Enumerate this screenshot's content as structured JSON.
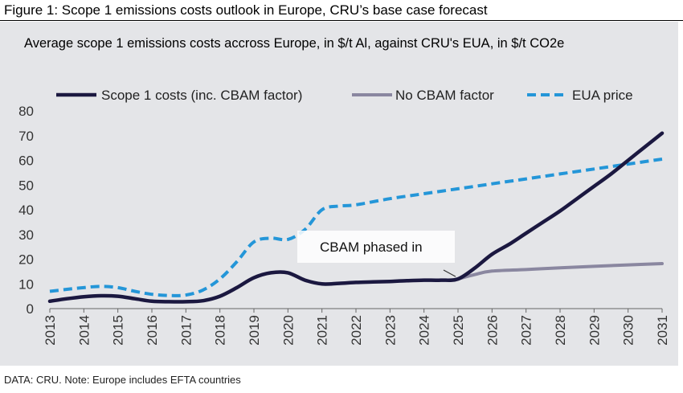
{
  "figure": {
    "title": "Figure 1: Scope 1 emissions costs outlook in Europe, CRU’s base case forecast",
    "footer": "DATA: CRU. Note: Europe includes EFTA countries"
  },
  "chart_data": {
    "type": "line",
    "title": "Average scope 1 emissions costs accross Europe, in $/t Al, against CRU's EUA, in $/t CO2e",
    "xlabel": "",
    "ylabel": "",
    "ylim": [
      0,
      80
    ],
    "yticks": [
      "0",
      "10",
      "20",
      "30",
      "40",
      "50",
      "60",
      "70",
      "80"
    ],
    "categories": [
      "2013",
      "2014",
      "2015",
      "2016",
      "2017",
      "2018",
      "2019",
      "2020",
      "2021",
      "2022",
      "2023",
      "2024",
      "2025",
      "2026",
      "2027",
      "2028",
      "2029",
      "2030",
      "2031"
    ],
    "series": [
      {
        "name": "Scope 1 costs (inc. CBAM factor)",
        "color": "#1b1840",
        "style": "solid",
        "x": [
          2013,
          2013.5,
          2014,
          2014.5,
          2015,
          2015.5,
          2016,
          2016.5,
          2017,
          2017.5,
          2018,
          2018.5,
          2019,
          2019.5,
          2020,
          2020.5,
          2021,
          2021.5,
          2022,
          2022.5,
          2023,
          2023.5,
          2024,
          2024.5,
          2025,
          2025.5,
          2026,
          2026.5,
          2027,
          2027.5,
          2028,
          2028.5,
          2029,
          2029.5,
          2030,
          2030.5,
          2031
        ],
        "values": [
          3,
          4,
          4.8,
          5.2,
          5,
          4,
          3,
          2.8,
          2.8,
          3.2,
          5,
          8.5,
          12.5,
          14.5,
          14.5,
          11.5,
          10,
          10.2,
          10.6,
          10.8,
          11,
          11.3,
          11.5,
          11.5,
          12,
          16.5,
          22,
          26,
          30.5,
          35,
          39.5,
          44.5,
          49.5,
          54.5,
          60,
          65.5,
          71
        ]
      },
      {
        "name": "No CBAM factor",
        "color": "#8a87a0",
        "style": "solid",
        "x": [
          2025,
          2025.5,
          2026,
          2027,
          2028,
          2029,
          2030,
          2031
        ],
        "values": [
          12,
          13.8,
          15.2,
          15.8,
          16.5,
          17.1,
          17.7,
          18.2
        ]
      },
      {
        "name": "EUA price",
        "color": "#2496d8",
        "style": "dashed",
        "x": [
          2013,
          2013.5,
          2014,
          2014.5,
          2015,
          2015.5,
          2016,
          2016.5,
          2017,
          2017.5,
          2018,
          2018.5,
          2019,
          2019.5,
          2020,
          2020.5,
          2021,
          2021.5,
          2022,
          2023,
          2024,
          2025,
          2026,
          2027,
          2028,
          2029,
          2030,
          2031
        ],
        "values": [
          7,
          7.8,
          8.5,
          9,
          8.5,
          7,
          5.8,
          5.3,
          5.5,
          7.5,
          12,
          19,
          27,
          28.5,
          28,
          32,
          40,
          41.5,
          42,
          44.5,
          46.5,
          48.5,
          50.5,
          52.5,
          54.5,
          56.5,
          58.5,
          60.5
        ]
      }
    ],
    "legend": {
      "position": "top",
      "entries": [
        "Scope 1 costs (inc. CBAM factor)",
        "No CBAM factor",
        "EUA price"
      ]
    },
    "annotations": [
      {
        "text": "CBAM phased in",
        "x": 2025,
        "y": 12
      }
    ],
    "grid": false
  }
}
